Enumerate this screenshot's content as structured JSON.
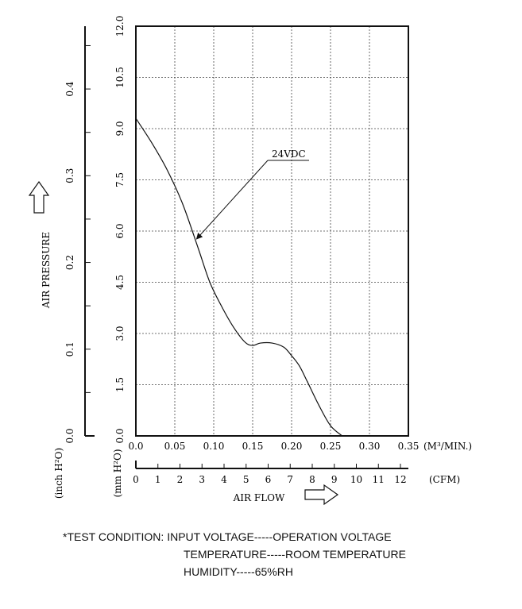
{
  "chart_data": {
    "type": "line",
    "title": "",
    "xlabel": "AIR FLOW",
    "ylabel": "AIR PRESSURE",
    "x_unit_primary": "(M³/MIN.)",
    "x_unit_secondary": "(CFM)",
    "y_unit_mm": "(mm H²O)",
    "y_unit_inch": "(inch H²O)",
    "xlim": [
      0,
      0.35
    ],
    "ylim": [
      0,
      12
    ],
    "x_ticks": [
      "0.0",
      "0.05",
      "0.10",
      "0.15",
      "0.20",
      "0.25",
      "0.30",
      "0.35"
    ],
    "y_ticks": [
      "0.0",
      "1.5",
      "3.0",
      "4.5",
      "6.0",
      "7.5",
      "9.0",
      "10.5",
      "12.0"
    ],
    "cfm_ticks": [
      "0",
      "1",
      "2",
      "3",
      "4",
      "5",
      "6",
      "7",
      "8",
      "9",
      "10",
      "11",
      "12"
    ],
    "cfm_lim": [
      0,
      12.36
    ],
    "inch_ticks": [
      "0.0",
      "0.1",
      "0.2",
      "0.3",
      "0.4"
    ],
    "inch_lim": [
      0,
      0.4724
    ],
    "grid": true,
    "series": [
      {
        "name": "24VDC",
        "x": [
          0.0,
          0.02,
          0.04,
          0.06,
          0.08,
          0.095,
          0.11,
          0.125,
          0.14,
          0.15,
          0.16,
          0.175,
          0.19,
          0.2,
          0.21,
          0.22,
          0.235,
          0.25,
          0.265
        ],
        "y": [
          9.3,
          8.6,
          7.8,
          6.8,
          5.5,
          4.5,
          3.8,
          3.2,
          2.75,
          2.65,
          2.72,
          2.72,
          2.6,
          2.35,
          2.05,
          1.6,
          0.9,
          0.3,
          0.0
        ]
      }
    ],
    "annotations": [
      {
        "text": "24VDC",
        "target_x": 0.075,
        "target_y": 5.7
      }
    ]
  },
  "test_condition": {
    "line1": "*TEST CONDITION: INPUT VOLTAGE-----OPERATION VOLTAGE",
    "line2": "TEMPERATURE-----ROOM TEMPERATURE",
    "line3": "HUMIDITY-----65%RH"
  }
}
